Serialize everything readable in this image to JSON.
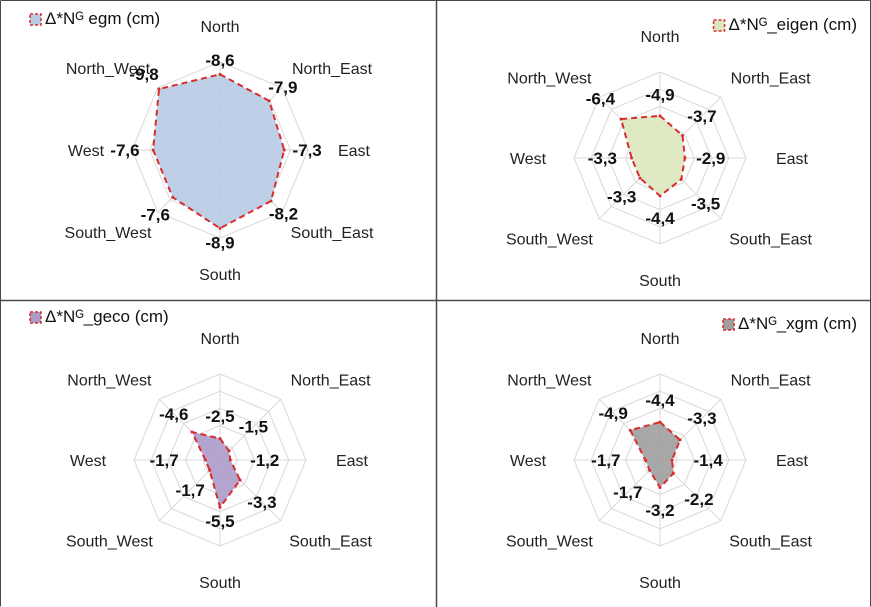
{
  "chart_data": [
    {
      "type": "radar",
      "legend": "Δ*Nᴳ  egm (cm)",
      "legend_color": "#b7cbe6",
      "fill": "#b7cbe6",
      "categories": [
        "North",
        "North_East",
        "East",
        "South_East",
        "South",
        "South_West",
        "West",
        "North_West"
      ],
      "values": [
        -8.6,
        -7.9,
        -7.3,
        -8.2,
        -8.9,
        -7.6,
        -7.6,
        -9.8
      ],
      "labels": [
        "-8,6",
        "-7,9",
        "-7,3",
        "-8,2",
        "-8,9",
        "-7,6",
        "-7,6",
        "-9,8"
      ]
    },
    {
      "type": "radar",
      "legend": "Δ*Nᴳ_eigen (cm)",
      "legend_color": "#dbe7be",
      "fill": "#dbe7be",
      "categories": [
        "North",
        "North_East",
        "East",
        "South_East",
        "South",
        "South_West",
        "West",
        "North_West"
      ],
      "values": [
        -4.9,
        -3.7,
        -2.9,
        -3.5,
        -4.4,
        -3.3,
        -3.3,
        -6.4
      ],
      "labels": [
        "-4,9",
        "-3,7",
        "-2,9",
        "-3,5",
        "-4,4",
        "-3,3",
        "-3,3",
        "-6,4"
      ]
    },
    {
      "type": "radar",
      "legend": "Δ*Nᴳ_geco (cm)",
      "legend_color": "#ab9bc9",
      "fill": "#ab9bc9",
      "categories": [
        "North",
        "North_East",
        "East",
        "South_East",
        "South",
        "South_West",
        "West",
        "North_West"
      ],
      "values": [
        -2.5,
        -1.5,
        -1.2,
        -3.3,
        -5.5,
        -1.7,
        -1.7,
        -4.6
      ],
      "labels": [
        "-2,5",
        "-1,5",
        "-1,2",
        "-3,3",
        "-5,5",
        "-1,7",
        "-1,7",
        "-4,6"
      ]
    },
    {
      "type": "radar",
      "legend": "Δ*Nᴳ_xgm (cm)",
      "legend_color": "#9f9f9f",
      "fill": "#9f9f9f",
      "categories": [
        "North",
        "North_East",
        "East",
        "South_East",
        "South",
        "South_West",
        "West",
        "North_West"
      ],
      "values": [
        -4.4,
        -3.3,
        -1.4,
        -2.2,
        -3.2,
        -1.7,
        -1.7,
        -4.9
      ],
      "labels": [
        "-4,4",
        "-3,3",
        "-1,4",
        "-2,2",
        "-3,2",
        "-1,7",
        "-1,7",
        "-4,9"
      ]
    }
  ],
  "colors": {
    "outline": "#d92d2d",
    "grid": "#d9d9d9",
    "text": "#222222",
    "border": "#4a4a4a"
  }
}
